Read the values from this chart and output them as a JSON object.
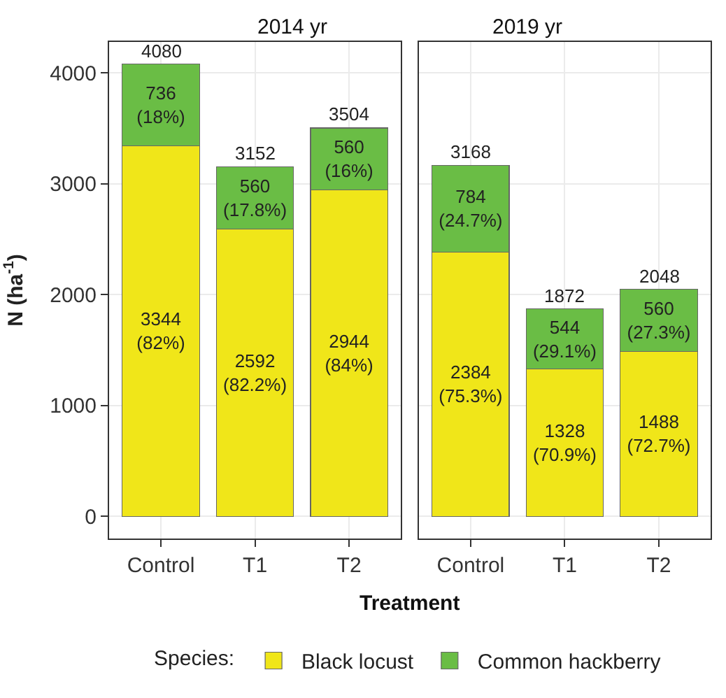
{
  "chart_data": [
    {
      "type": "bar",
      "title": "2014 yr",
      "ylabel": "N (ha$^{-1}$)",
      "xlabel": "Treatment",
      "legend_title": "Species:",
      "legend": "bottom",
      "stacked": true,
      "grid": true,
      "categories": [
        "Control",
        "T1",
        "T2"
      ],
      "series": [
        {
          "name": "Black locust",
          "color": "#f0e619",
          "values": [
            3344,
            2592,
            2944
          ],
          "value_labels": [
            "3344\n(82%)",
            "2592\n(82.2%)",
            "2944\n(84%)"
          ]
        },
        {
          "name": "Common hackberry",
          "color": "#6abd45",
          "values": [
            736,
            560,
            560
          ],
          "value_labels": [
            "736\n(18%)",
            "560\n(17.8%)",
            "560\n(16%)"
          ]
        }
      ],
      "totals": [
        "4080",
        "3152",
        "3504"
      ],
      "ylim": [
        -200,
        4280
      ],
      "yticks": [
        0,
        1000,
        2000,
        3000,
        4000
      ]
    },
    {
      "type": "bar",
      "title": "2019 yr",
      "stacked": true,
      "grid": true,
      "tick_labels": "x",
      "categories": [
        "Control",
        "T1",
        "T2"
      ],
      "series": [
        {
          "name": "Black locust",
          "color": "#f0e619",
          "values": [
            2384,
            1328,
            1488
          ],
          "value_labels": [
            "2384\n(75.3%)",
            "1328\n(70.9%)",
            "1488\n(72.7%)"
          ]
        },
        {
          "name": "Common hackberry",
          "color": "#6abd45",
          "values": [
            784,
            544,
            560
          ],
          "value_labels": [
            "784\n(24.7%)",
            "544\n(29.1%)",
            "560\n(27.3%)"
          ]
        }
      ],
      "totals": [
        "3168",
        "1872",
        "2048"
      ],
      "ylim": [
        -200,
        4280
      ],
      "yticks": [
        0,
        1000,
        2000,
        3000,
        4000
      ]
    }
  ]
}
